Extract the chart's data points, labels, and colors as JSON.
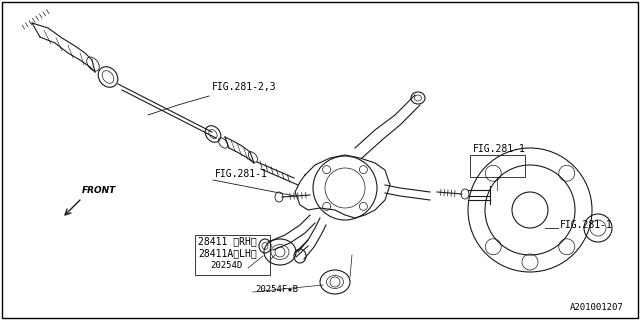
{
  "bg_color": "#ffffff",
  "line_color": "#1a1a1a",
  "text_color": "#000000",
  "fig_width": 6.4,
  "fig_height": 3.2,
  "dpi": 100,
  "border_color": "#000000",
  "labels": {
    "fig281_23": "FIG.281-2,3",
    "fig281_1a": "FIG.281-1",
    "fig281_1b": "FIG.281-1",
    "fig281_1c": "FIG.281-1",
    "part28411": "28411 〈RH〉",
    "part28411a": "28411A〈LH〉",
    "part20254d": "20254D",
    "part20254f": "20254F★B",
    "front": "FRONT",
    "ref": "A201001207"
  }
}
